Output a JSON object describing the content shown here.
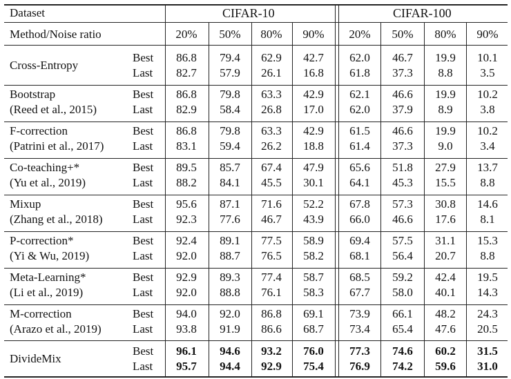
{
  "header": {
    "dataset_label": "Dataset",
    "cifar10_label": "CIFAR-10",
    "cifar100_label": "CIFAR-100",
    "method_label": "Method/Noise ratio",
    "noise_ratios": [
      "20%",
      "50%",
      "80%",
      "90%",
      "20%",
      "50%",
      "80%",
      "90%"
    ]
  },
  "methods": [
    {
      "name": "Cross-Entropy",
      "citation": "",
      "bold": false,
      "rows": [
        {
          "label": "Best",
          "values": [
            "86.8",
            "79.4",
            "62.9",
            "42.7",
            "62.0",
            "46.7",
            "19.9",
            "10.1"
          ]
        },
        {
          "label": "Last",
          "values": [
            "82.7",
            "57.9",
            "26.1",
            "16.8",
            "61.8",
            "37.3",
            "8.8",
            "3.5"
          ]
        }
      ]
    },
    {
      "name": "Bootstrap",
      "citation": "(Reed et al., 2015)",
      "bold": false,
      "rows": [
        {
          "label": "Best",
          "values": [
            "86.8",
            "79.8",
            "63.3",
            "42.9",
            "62.1",
            "46.6",
            "19.9",
            "10.2"
          ]
        },
        {
          "label": "Last",
          "values": [
            "82.9",
            "58.4",
            "26.8",
            "17.0",
            "62.0",
            "37.9",
            "8.9",
            "3.8"
          ]
        }
      ]
    },
    {
      "name": "F-correction",
      "citation": "(Patrini et al., 2017)",
      "bold": false,
      "rows": [
        {
          "label": "Best",
          "values": [
            "86.8",
            "79.8",
            "63.3",
            "42.9",
            "61.5",
            "46.6",
            "19.9",
            "10.2"
          ]
        },
        {
          "label": "Last",
          "values": [
            "83.1",
            "59.4",
            "26.2",
            "18.8",
            "61.4",
            "37.3",
            "9.0",
            "3.4"
          ]
        }
      ]
    },
    {
      "name": "Co-teaching+*",
      "citation": "(Yu et al., 2019)",
      "bold": false,
      "rows": [
        {
          "label": "Best",
          "values": [
            "89.5",
            "85.7",
            "67.4",
            "47.9",
            "65.6",
            "51.8",
            "27.9",
            "13.7"
          ]
        },
        {
          "label": "Last",
          "values": [
            "88.2",
            "84.1",
            "45.5",
            "30.1",
            "64.1",
            "45.3",
            "15.5",
            "8.8"
          ]
        }
      ]
    },
    {
      "name": "Mixup",
      "citation": "(Zhang et al., 2018)",
      "bold": false,
      "rows": [
        {
          "label": "Best",
          "values": [
            "95.6",
            "87.1",
            "71.6",
            "52.2",
            "67.8",
            "57.3",
            "30.8",
            "14.6"
          ]
        },
        {
          "label": "Last",
          "values": [
            "92.3",
            "77.6",
            "46.7",
            "43.9",
            "66.0",
            "46.6",
            "17.6",
            "8.1"
          ]
        }
      ]
    },
    {
      "name": "P-correction*",
      "citation": "(Yi & Wu, 2019)",
      "bold": false,
      "rows": [
        {
          "label": "Best",
          "values": [
            "92.4",
            "89.1",
            "77.5",
            "58.9",
            "69.4",
            "57.5",
            "31.1",
            "15.3"
          ]
        },
        {
          "label": "Last",
          "values": [
            "92.0",
            "88.7",
            "76.5",
            "58.2",
            "68.1",
            "56.4",
            "20.7",
            "8.8"
          ]
        }
      ]
    },
    {
      "name": "Meta-Learning*",
      "citation": "(Li et al., 2019)",
      "bold": false,
      "rows": [
        {
          "label": "Best",
          "values": [
            "92.9",
            "89.3",
            "77.4",
            "58.7",
            "68.5",
            "59.2",
            "42.4",
            "19.5"
          ]
        },
        {
          "label": "Last",
          "values": [
            "92.0",
            "88.8",
            "76.1",
            "58.3",
            "67.7",
            "58.0",
            "40.1",
            "14.3"
          ]
        }
      ]
    },
    {
      "name": "M-correction",
      "citation": "(Arazo et al., 2019)",
      "bold": false,
      "rows": [
        {
          "label": "Best",
          "values": [
            "94.0",
            "92.0",
            "86.8",
            "69.1",
            "73.9",
            "66.1",
            "48.2",
            "24.3"
          ]
        },
        {
          "label": "Last",
          "values": [
            "93.8",
            "91.9",
            "86.6",
            "68.7",
            "73.4",
            "65.4",
            "47.6",
            "20.5"
          ]
        }
      ]
    },
    {
      "name": "DivideMix",
      "citation": "",
      "bold": true,
      "rows": [
        {
          "label": "Best",
          "values": [
            "96.1",
            "94.6",
            "93.2",
            "76.0",
            "77.3",
            "74.6",
            "60.2",
            "31.5"
          ]
        },
        {
          "label": "Last",
          "values": [
            "95.7",
            "94.4",
            "92.9",
            "75.4",
            "76.9",
            "74.2",
            "59.6",
            "31.0"
          ]
        }
      ]
    }
  ]
}
